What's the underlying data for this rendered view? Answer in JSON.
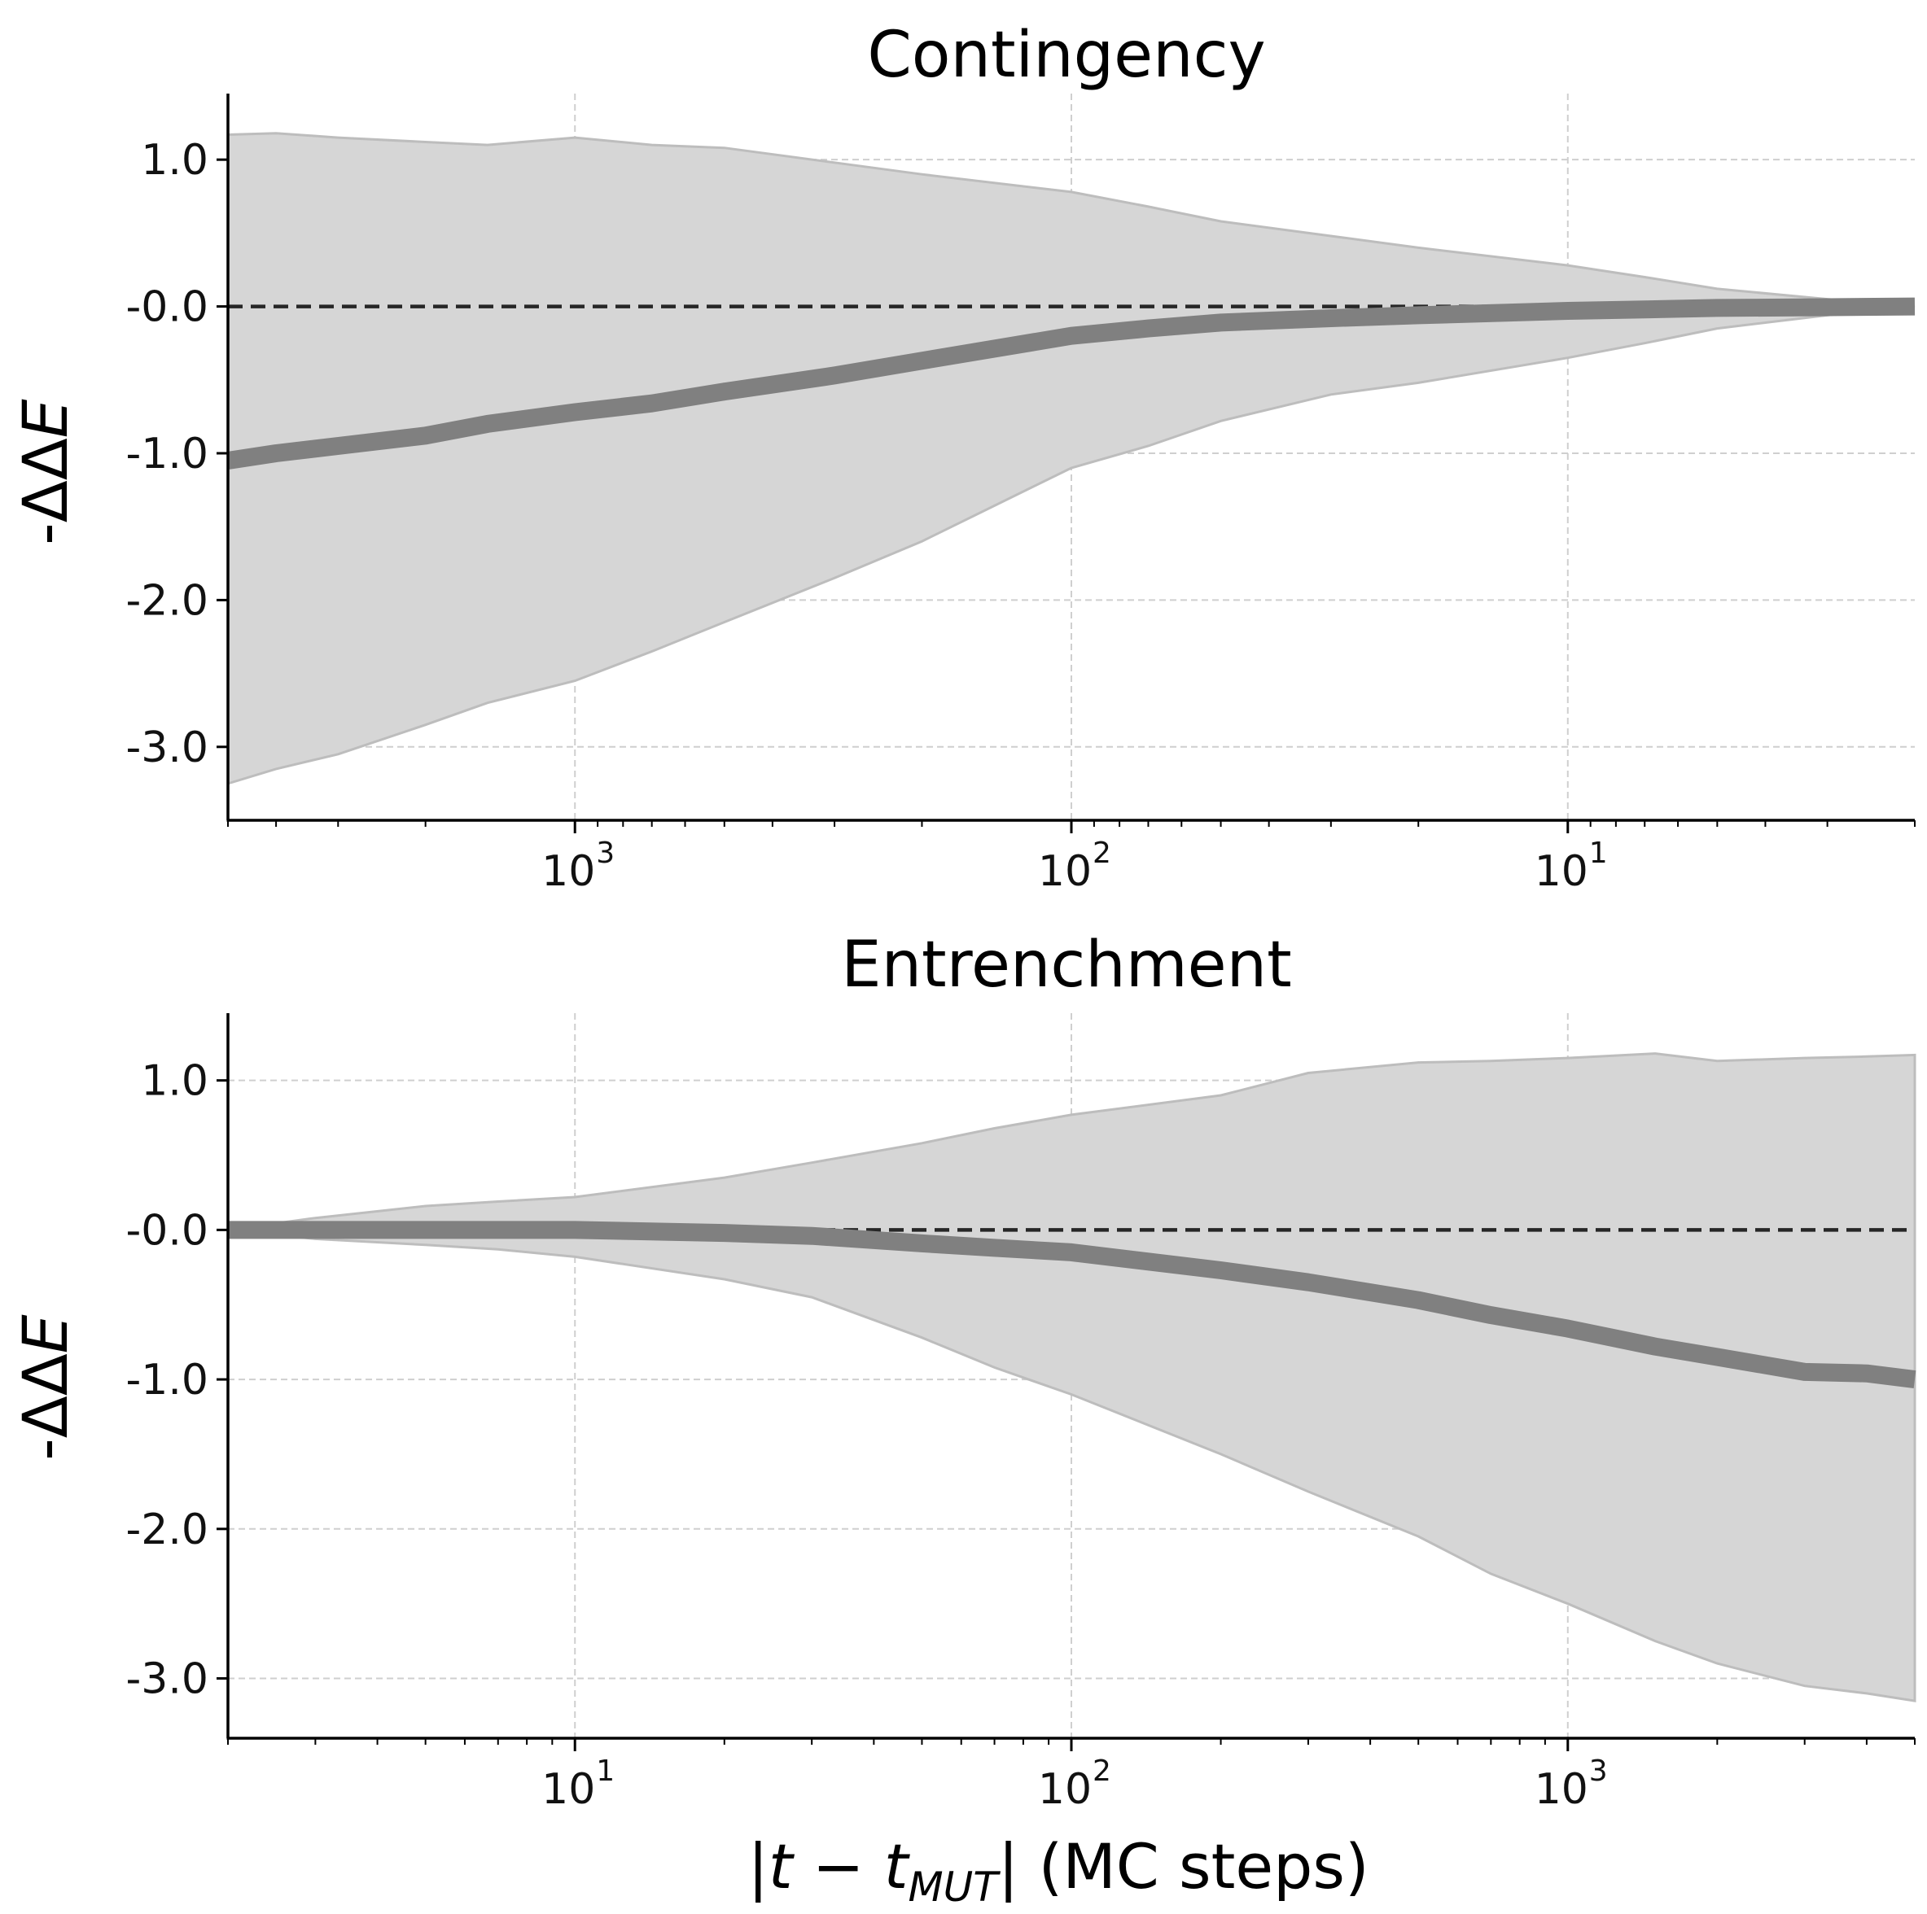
{
  "figure": {
    "xlabel": "|t − t_MUT| (MC steps)",
    "xlabel_main": "t − t",
    "xlabel_sub": "MUT",
    "xlabel_units": "(MC steps)"
  },
  "chart_data": [
    {
      "type": "line",
      "title": "Contingency",
      "ylabel": "-ΔΔE",
      "ylabel_prefix": "-ΔΔ",
      "ylabel_var": "E",
      "xscale": "log",
      "xaxis_inverted": true,
      "xlim": [
        5000,
        2
      ],
      "ylim": [
        -3.5,
        1.45
      ],
      "grid": true,
      "legend": "none",
      "colors": {
        "band": "#d6d6d6",
        "band_edge": "#bdbdbd",
        "mean": "#808080",
        "reference": "#262626"
      },
      "yticks": [
        1.0,
        0.0,
        -1.0,
        -2.0,
        -3.0
      ],
      "ytick_labels": [
        "1.0",
        "-0.0",
        "-1.0",
        "-2.0",
        "-3.0"
      ],
      "xticks": [
        1000,
        100,
        10
      ],
      "xtick_labels": [
        "10",
        "10",
        "10"
      ],
      "xtick_exponents": [
        "3",
        "2",
        "1"
      ],
      "reference_line": {
        "y": 0,
        "style": "dashed"
      },
      "x": [
        5000,
        4000,
        3000,
        2000,
        1500,
        1000,
        700,
        500,
        300,
        200,
        100,
        70,
        50,
        30,
        20,
        10,
        7,
        5,
        3,
        2
      ],
      "mean": [
        -1.05,
        -1.0,
        -0.95,
        -0.88,
        -0.8,
        -0.72,
        -0.66,
        -0.58,
        -0.47,
        -0.37,
        -0.2,
        -0.15,
        -0.11,
        -0.08,
        -0.06,
        -0.03,
        -0.02,
        -0.01,
        -0.005,
        0.0
      ],
      "band_upper": [
        1.17,
        1.18,
        1.15,
        1.12,
        1.1,
        1.15,
        1.1,
        1.08,
        0.98,
        0.9,
        0.78,
        0.68,
        0.58,
        0.48,
        0.4,
        0.28,
        0.2,
        0.12,
        0.05,
        0.0
      ],
      "band_lower": [
        -3.25,
        -3.15,
        -3.05,
        -2.85,
        -2.7,
        -2.55,
        -2.35,
        -2.15,
        -1.85,
        -1.6,
        -1.1,
        -0.95,
        -0.78,
        -0.6,
        -0.52,
        -0.35,
        -0.25,
        -0.15,
        -0.06,
        0.0
      ]
    },
    {
      "type": "line",
      "title": "Entrenchment",
      "ylabel": "-ΔΔE",
      "ylabel_prefix": "-ΔΔ",
      "ylabel_var": "E",
      "xscale": "log",
      "xaxis_inverted": false,
      "xlim": [
        2,
        5000
      ],
      "ylim": [
        -3.4,
        1.45
      ],
      "grid": true,
      "legend": "none",
      "colors": {
        "band": "#d6d6d6",
        "band_edge": "#bdbdbd",
        "mean": "#808080",
        "reference": "#262626"
      },
      "yticks": [
        1.0,
        0.0,
        -1.0,
        -2.0,
        -3.0
      ],
      "ytick_labels": [
        "1.0",
        "-0.0",
        "-1.0",
        "-2.0",
        "-3.0"
      ],
      "xticks": [
        10,
        100,
        1000
      ],
      "xtick_labels": [
        "10",
        "10",
        "10"
      ],
      "xtick_exponents": [
        "1",
        "2",
        "3"
      ],
      "reference_line": {
        "y": 0,
        "style": "dashed"
      },
      "x": [
        2,
        3,
        5,
        7,
        10,
        20,
        30,
        50,
        70,
        100,
        200,
        300,
        500,
        700,
        1000,
        1500,
        2000,
        3000,
        4000,
        5000
      ],
      "mean": [
        0.0,
        0.0,
        0.0,
        0.0,
        0.0,
        -0.02,
        -0.04,
        -0.09,
        -0.12,
        -0.15,
        -0.27,
        -0.35,
        -0.47,
        -0.57,
        -0.66,
        -0.78,
        -0.85,
        -0.95,
        -0.96,
        -1.0
      ],
      "band_upper": [
        0.0,
        0.08,
        0.16,
        0.19,
        0.22,
        0.35,
        0.45,
        0.58,
        0.68,
        0.77,
        0.9,
        1.05,
        1.12,
        1.13,
        1.15,
        1.18,
        1.13,
        1.15,
        1.16,
        1.17
      ],
      "band_lower": [
        0.0,
        -0.06,
        -0.1,
        -0.13,
        -0.18,
        -0.33,
        -0.45,
        -0.72,
        -0.92,
        -1.1,
        -1.5,
        -1.75,
        -2.05,
        -2.3,
        -2.5,
        -2.75,
        -2.9,
        -3.05,
        -3.1,
        -3.15
      ]
    }
  ]
}
